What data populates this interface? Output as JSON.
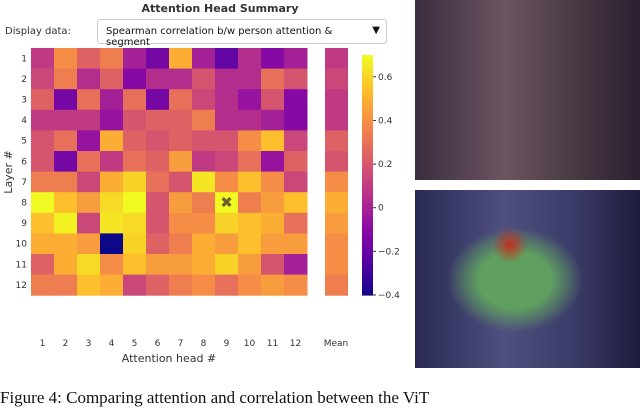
{
  "title": "Attention Head Summary",
  "display_label": "Display data:",
  "dropdown_value": "Spearman correlation b/w person attention & segment",
  "caption": "Figure 4: Comparing attention and correlation between the ViT",
  "chart_data": {
    "type": "heatmap",
    "xlabel": "Attention head #",
    "ylabel": "Layer #",
    "x_ticks": [
      "1",
      "2",
      "3",
      "4",
      "5",
      "6",
      "7",
      "8",
      "9",
      "10",
      "11",
      "12"
    ],
    "y_ticks": [
      "1",
      "2",
      "3",
      "4",
      "5",
      "6",
      "7",
      "8",
      "9",
      "10",
      "11",
      "12"
    ],
    "mean_label": "Mean",
    "colormap": "plasma",
    "clim": [
      -0.4,
      0.7
    ],
    "colorbar_ticks": [
      "0.6",
      "0.4",
      "0.2",
      "0",
      "−0.2",
      "−0.4"
    ],
    "colorbar_values": [
      0.6,
      0.4,
      0.2,
      0,
      -0.2,
      -0.4
    ],
    "selected_cell": {
      "layer": 8,
      "head": 9,
      "marker": "x"
    },
    "values": [
      [
        0.1,
        0.4,
        0.25,
        0.35,
        0.0,
        -0.15,
        0.5,
        0.0,
        -0.2,
        0.05,
        -0.1,
        0.0
      ],
      [
        0.15,
        0.35,
        0.05,
        0.25,
        -0.1,
        0.05,
        0.05,
        0.2,
        0.05,
        0.05,
        0.3,
        0.2
      ],
      [
        0.25,
        -0.15,
        0.3,
        0.0,
        0.3,
        -0.15,
        0.3,
        0.15,
        0.05,
        -0.05,
        0.2,
        -0.1
      ],
      [
        0.1,
        0.1,
        0.1,
        -0.05,
        0.2,
        0.25,
        0.25,
        0.35,
        0.05,
        0.05,
        0.0,
        -0.1
      ],
      [
        0.2,
        0.3,
        -0.05,
        0.5,
        0.25,
        0.2,
        0.25,
        0.2,
        0.2,
        0.4,
        0.55,
        0.15
      ],
      [
        0.2,
        -0.15,
        0.3,
        0.1,
        0.3,
        0.25,
        0.45,
        0.1,
        0.15,
        0.3,
        -0.05,
        0.25
      ],
      [
        0.35,
        0.35,
        0.15,
        0.5,
        0.6,
        0.3,
        0.2,
        0.65,
        0.4,
        0.55,
        0.4,
        0.15
      ],
      [
        0.7,
        0.55,
        0.45,
        0.62,
        0.7,
        0.2,
        0.45,
        0.35,
        0.72,
        0.35,
        0.45,
        0.55
      ],
      [
        0.55,
        0.68,
        0.15,
        0.65,
        0.62,
        0.2,
        0.4,
        0.4,
        0.6,
        0.55,
        0.5,
        0.3
      ],
      [
        0.5,
        0.5,
        0.45,
        -0.4,
        0.6,
        0.25,
        0.35,
        0.5,
        0.45,
        0.55,
        0.45,
        0.45
      ],
      [
        0.25,
        0.5,
        0.62,
        0.4,
        0.55,
        0.45,
        0.45,
        0.5,
        0.6,
        0.45,
        0.2,
        0.0
      ],
      [
        0.35,
        0.35,
        0.55,
        0.5,
        0.15,
        0.25,
        0.35,
        0.4,
        0.3,
        0.4,
        0.45,
        0.4
      ]
    ],
    "mean": [
      0.1,
      0.15,
      0.1,
      0.1,
      0.25,
      0.2,
      0.4,
      0.5,
      0.45,
      0.4,
      0.4,
      0.35
    ]
  }
}
